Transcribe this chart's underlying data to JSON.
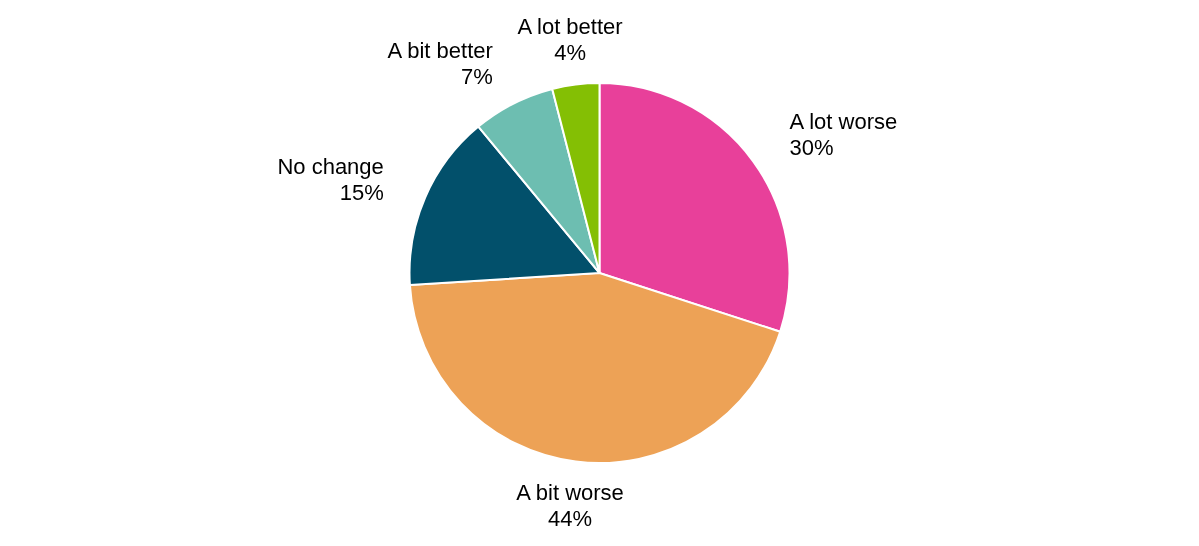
{
  "chart_data": {
    "type": "pie",
    "categories": [
      "A lot worse",
      "A bit worse",
      "No change",
      "A bit better",
      "A lot better"
    ],
    "values": [
      30,
      44,
      15,
      7,
      4
    ],
    "value_labels": [
      "30%",
      "44%",
      "15%",
      "7%",
      "4%"
    ],
    "colors": [
      "#e8409a",
      "#eda256",
      "#02506b",
      "#6dbeb1",
      "#84bf04"
    ]
  }
}
